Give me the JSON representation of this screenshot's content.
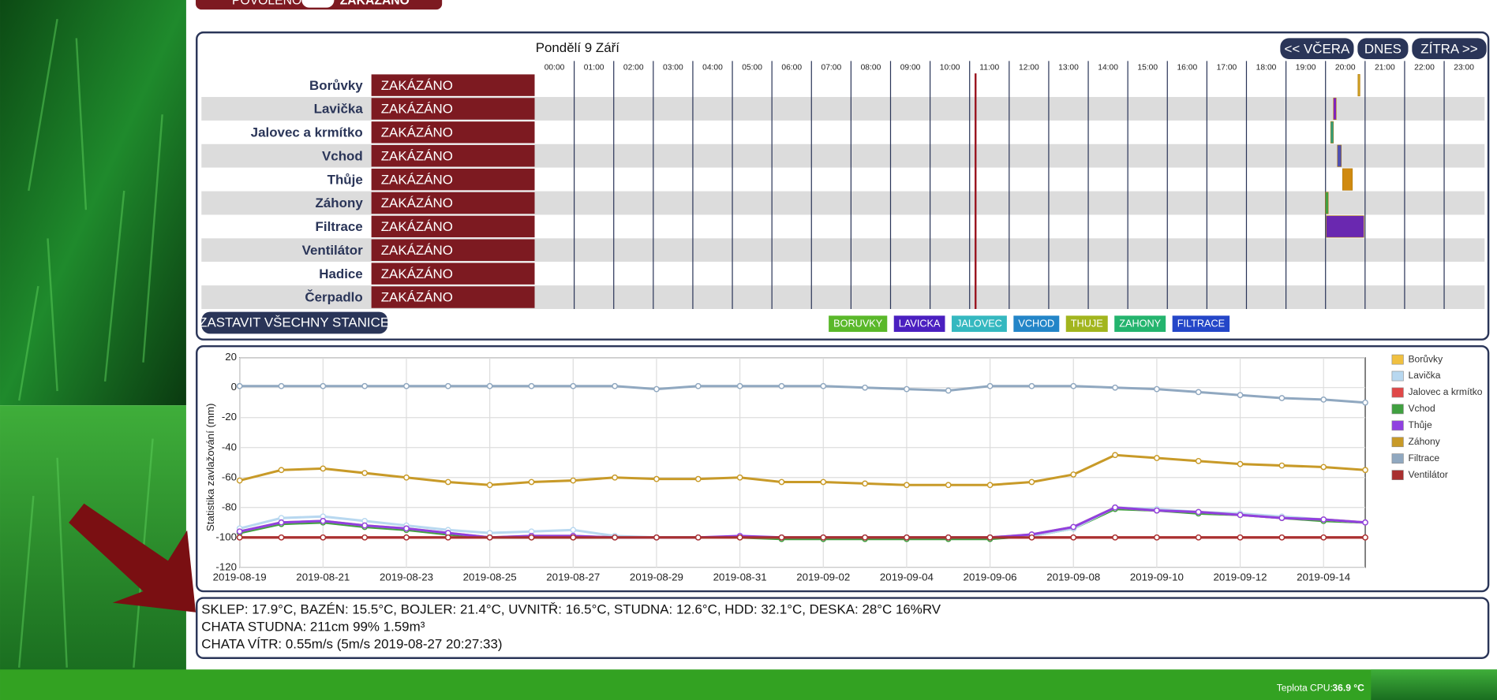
{
  "toggle": {
    "on": "POVOLENO",
    "off": "ZAKÁZÁNO"
  },
  "schedule": {
    "date": "Pondělí 9 Září",
    "nav": [
      "<< VČERA",
      "DNES",
      "ZÍTRA >>"
    ],
    "hours": [
      "00:00",
      "01:00",
      "02:00",
      "03:00",
      "04:00",
      "05:00",
      "06:00",
      "07:00",
      "08:00",
      "09:00",
      "10:00",
      "11:00",
      "12:00",
      "13:00",
      "14:00",
      "15:00",
      "16:00",
      "17:00",
      "18:00",
      "19:00",
      "20:00",
      "21:00",
      "22:00",
      "23:00"
    ],
    "now": 11.15,
    "stations": [
      {
        "name": "Borůvky",
        "status": "ZAKÁZÁNO",
        "runs": [
          {
            "start": 20.82,
            "end": 20.87,
            "color": "#d0a020"
          }
        ]
      },
      {
        "name": "Lavička",
        "status": "ZAKÁZÁNO",
        "runs": [
          {
            "start": 20.2,
            "end": 20.27,
            "color": "#8020c0"
          }
        ]
      },
      {
        "name": "Jalovec a krmítko",
        "status": "ZAKÁZÁNO",
        "runs": [
          {
            "start": 20.13,
            "end": 20.2,
            "color": "#30a080"
          }
        ]
      },
      {
        "name": "Vchod",
        "status": "ZAKÁZÁNO",
        "runs": [
          {
            "start": 20.3,
            "end": 20.4,
            "color": "#5050b0"
          }
        ]
      },
      {
        "name": "Thůje",
        "status": "ZAKÁZÁNO",
        "runs": [
          {
            "start": 20.43,
            "end": 20.68,
            "color": "#d08a10"
          }
        ]
      },
      {
        "name": "Záhony",
        "status": "ZAKÁZÁNO",
        "runs": [
          {
            "start": 20.0,
            "end": 20.07,
            "color": "#40a040"
          }
        ]
      },
      {
        "name": "Filtrace",
        "status": "ZAKÁZÁNO",
        "runs": [
          {
            "start": 20.02,
            "end": 20.97,
            "color": "#6a28b0"
          }
        ]
      },
      {
        "name": "Ventilátor",
        "status": "ZAKÁZÁNO",
        "runs": []
      },
      {
        "name": "Hadice",
        "status": "ZAKÁZÁNO",
        "runs": []
      },
      {
        "name": "Čerpadlo",
        "status": "ZAKÁZÁNO",
        "runs": []
      }
    ],
    "stop_all": "ZASTAVIT VŠECHNY STANICE",
    "legend": [
      {
        "label": "BORUVKY",
        "color": "#5ab82a"
      },
      {
        "label": "LAVICKA",
        "color": "#4a1fc0"
      },
      {
        "label": "JALOVEC",
        "color": "#35b8c0"
      },
      {
        "label": "VCHOD",
        "color": "#2385c8"
      },
      {
        "label": "THUJE",
        "color": "#a2b51e"
      },
      {
        "label": "ZAHONY",
        "color": "#24b46e"
      },
      {
        "label": "FILTRACE",
        "color": "#2446c8"
      }
    ]
  },
  "chart_data": {
    "type": "line",
    "y_label": "Statistika zavlažování (mm)",
    "x": [
      "2019-08-19",
      "2019-08-20",
      "2019-08-21",
      "2019-08-22",
      "2019-08-23",
      "2019-08-24",
      "2019-08-25",
      "2019-08-26",
      "2019-08-27",
      "2019-08-28",
      "2019-08-29",
      "2019-08-30",
      "2019-08-31",
      "2019-09-01",
      "2019-09-02",
      "2019-09-03",
      "2019-09-04",
      "2019-09-05",
      "2019-09-06",
      "2019-09-07",
      "2019-09-08",
      "2019-09-09",
      "2019-09-10",
      "2019-09-11",
      "2019-09-12",
      "2019-09-13",
      "2019-09-14",
      "2019-09-15"
    ],
    "xticks": [
      "2019-08-19",
      "2019-08-21",
      "2019-08-23",
      "2019-08-25",
      "2019-08-27",
      "2019-08-29",
      "2019-08-31",
      "2019-09-02",
      "2019-09-04",
      "2019-09-06",
      "2019-09-08",
      "2019-09-10",
      "2019-09-12",
      "2019-09-14"
    ],
    "ylim": [
      -120,
      20
    ],
    "yticks": [
      -120,
      -100,
      -80,
      -60,
      -40,
      -20,
      0,
      20
    ],
    "grid": true,
    "series": [
      {
        "name": "Borůvky",
        "color": "#f0c040",
        "values": [
          -96,
          -90,
          -89,
          -92,
          -94,
          -97,
          -100,
          -99,
          -99,
          -100,
          -100,
          -100,
          -100,
          -100,
          -100,
          -100,
          -100,
          -100,
          -100,
          -98,
          -93,
          -80,
          -82,
          -83,
          -85,
          -87,
          -88,
          -90
        ]
      },
      {
        "name": "Lavička",
        "color": "#b8d8f0",
        "values": [
          -94,
          -87,
          -86,
          -89,
          -92,
          -95,
          -97,
          -96,
          -95,
          -99,
          -100,
          -100,
          -100,
          -100,
          -100,
          -100,
          -100,
          -100,
          -100,
          -99,
          -94,
          -80,
          -81,
          -83,
          -84,
          -86,
          -88,
          -90
        ]
      },
      {
        "name": "Jalovec a krmítko",
        "color": "#e04848",
        "values": [
          -100,
          -100,
          -100,
          -100,
          -100,
          -100,
          -100,
          -100,
          -100,
          -100,
          -100,
          -100,
          -100,
          -100,
          -100,
          -100,
          -100,
          -100,
          -100,
          -100,
          -100,
          -100,
          -100,
          -100,
          -100,
          -100,
          -100,
          -100
        ]
      },
      {
        "name": "Vchod",
        "color": "#40a040",
        "values": [
          -97,
          -91,
          -90,
          -93,
          -95,
          -98,
          -100,
          -100,
          -100,
          -100,
          -100,
          -100,
          -100,
          -101,
          -101,
          -101,
          -101,
          -101,
          -101,
          -99,
          -94,
          -81,
          -82,
          -84,
          -85,
          -87,
          -89,
          -90
        ]
      },
      {
        "name": "Thůje",
        "color": "#9040e0",
        "values": [
          -96,
          -90,
          -89,
          -92,
          -94,
          -97,
          -100,
          -99,
          -99,
          -100,
          -100,
          -100,
          -99,
          -100,
          -100,
          -100,
          -100,
          -100,
          -100,
          -98,
          -93,
          -80,
          -82,
          -83,
          -85,
          -87,
          -88,
          -90
        ]
      },
      {
        "name": "Záhony",
        "color": "#c89a28",
        "values": [
          -62,
          -55,
          -54,
          -57,
          -60,
          -63,
          -65,
          -63,
          -62,
          -60,
          -61,
          -61,
          -60,
          -63,
          -63,
          -64,
          -65,
          -65,
          -65,
          -63,
          -58,
          -45,
          -47,
          -49,
          -51,
          -52,
          -53,
          -55
        ]
      },
      {
        "name": "Filtrace",
        "color": "#90a8c0",
        "values": [
          1,
          1,
          1,
          1,
          1,
          1,
          1,
          1,
          1,
          1,
          -1,
          1,
          1,
          1,
          1,
          0,
          -1,
          -2,
          1,
          1,
          1,
          0,
          -1,
          -3,
          -5,
          -7,
          -8,
          -10
        ]
      },
      {
        "name": "Ventilátor",
        "color": "#a83030",
        "values": [
          -100,
          -100,
          -100,
          -100,
          -100,
          -100,
          -100,
          -100,
          -100,
          -100,
          -100,
          -100,
          -100,
          -100,
          -100,
          -100,
          -100,
          -100,
          -100,
          -100,
          -100,
          -100,
          -100,
          -100,
          -100,
          -100,
          -100,
          -100
        ]
      }
    ]
  },
  "info": {
    "lines": [
      "SKLEP: 17.9°C, BAZÉN: 15.5°C, BOJLER: 21.4°C, UVNITŘ: 16.5°C, STUDNA: 12.6°C, HDD: 32.1°C, DESKA: 28°C 16%RV",
      "CHATA STUDNA: 211cm 99% 1.59m³",
      "CHATA VÍTR: 0.55m/s (5m/s 2019-08-27 20:27:33)"
    ]
  },
  "footer": {
    "cpu_label": "Teplota CPU:",
    "cpu_value": "36.9 °C"
  }
}
